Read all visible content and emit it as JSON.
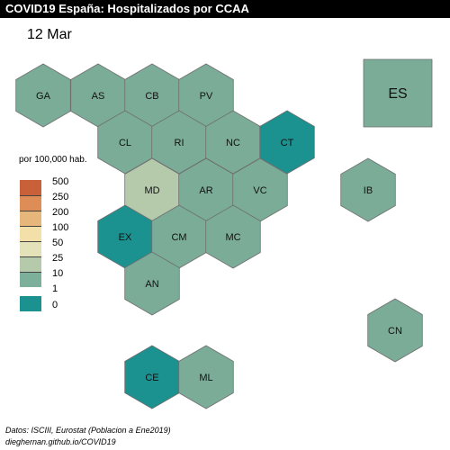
{
  "title": "COVID19 España: Hospitalizados por CCAA",
  "date": "12 Mar",
  "legend": {
    "title": "por 100,000 hab.",
    "breaks": [
      "500",
      "250",
      "200",
      "100",
      "50",
      "25",
      "10",
      "1",
      "0"
    ],
    "colors": [
      "#c8603a",
      "#dd8d55",
      "#e6b67a",
      "#f3dfa8",
      "#e3e2b9",
      "#b5c9ab",
      "#7db09a",
      "#1b9190"
    ]
  },
  "regions": [
    {
      "code": "GA",
      "fill": "#7aac98"
    },
    {
      "code": "AS",
      "fill": "#7aac98"
    },
    {
      "code": "CB",
      "fill": "#7aac98"
    },
    {
      "code": "PV",
      "fill": "#7aac98"
    },
    {
      "code": "CL",
      "fill": "#7aac98"
    },
    {
      "code": "RI",
      "fill": "#7aac98"
    },
    {
      "code": "NC",
      "fill": "#7aac98"
    },
    {
      "code": "CT",
      "fill": "#1b9190"
    },
    {
      "code": "MD",
      "fill": "#b5c9ab"
    },
    {
      "code": "AR",
      "fill": "#7aac98"
    },
    {
      "code": "VC",
      "fill": "#7aac98"
    },
    {
      "code": "IB",
      "fill": "#7aac98"
    },
    {
      "code": "EX",
      "fill": "#1b9190"
    },
    {
      "code": "CM",
      "fill": "#7aac98"
    },
    {
      "code": "MC",
      "fill": "#7aac98"
    },
    {
      "code": "AN",
      "fill": "#7aac98"
    },
    {
      "code": "CN",
      "fill": "#7aac98"
    },
    {
      "code": "CE",
      "fill": "#1b9190"
    },
    {
      "code": "ML",
      "fill": "#7aac98"
    }
  ],
  "national": {
    "code": "ES",
    "fill": "#7aac98"
  },
  "source": "Datos: ISCIII, Eurostat (Poblacion a Ene2019)",
  "site": "dieghernan.github.io/COVID19"
}
